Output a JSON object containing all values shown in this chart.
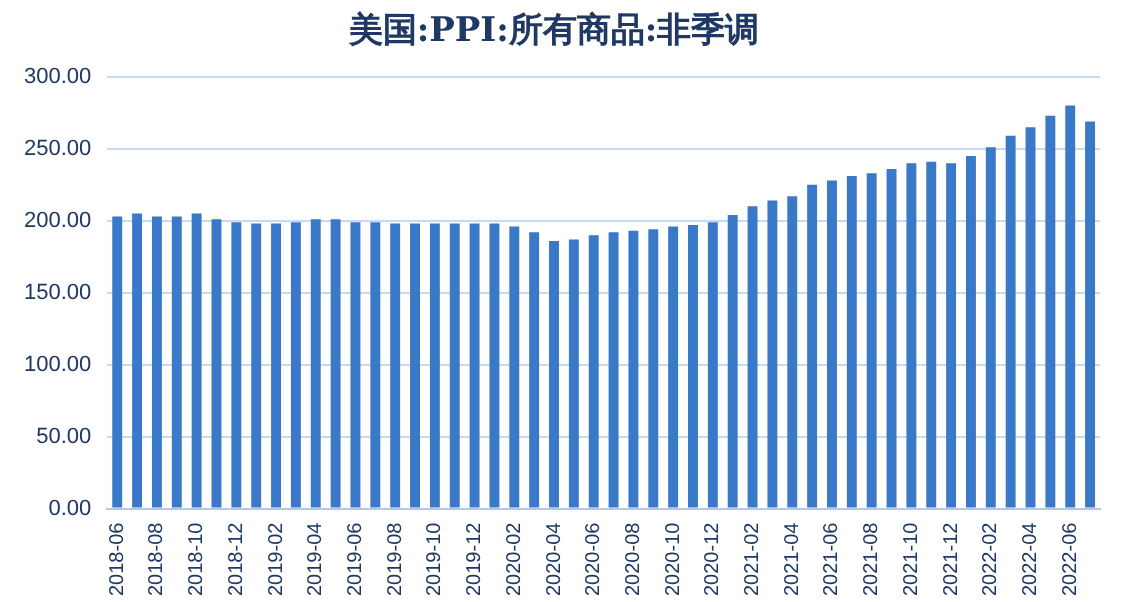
{
  "chart_data": {
    "type": "bar",
    "title": "美国:PPI:所有商品:非季调",
    "categories": [
      "2018-06",
      null,
      "2018-08",
      null,
      "2018-10",
      null,
      "2018-12",
      null,
      "2019-02",
      null,
      "2019-04",
      null,
      "2019-06",
      null,
      "2019-08",
      null,
      "2019-10",
      null,
      "2019-12",
      null,
      "2020-02",
      null,
      "2020-04",
      null,
      "2020-06",
      null,
      "2020-08",
      null,
      "2020-10",
      null,
      "2020-12",
      null,
      "2021-02",
      null,
      "2021-04",
      null,
      "2021-06",
      null,
      "2021-08",
      null,
      "2021-10",
      null,
      "2021-12",
      null,
      "2022-02",
      null,
      "2022-04",
      null,
      "2022-06",
      null
    ],
    "values": [
      203,
      205,
      203,
      203,
      205,
      201,
      199,
      198,
      198,
      199,
      201,
      201,
      199,
      199,
      198,
      198,
      198,
      198,
      198,
      198,
      196,
      192,
      186,
      187,
      190,
      192,
      193,
      194,
      196,
      197,
      199,
      204,
      210,
      214,
      217,
      225,
      228,
      231,
      233,
      236,
      240,
      241,
      240,
      245,
      251,
      259,
      265,
      273,
      280,
      269
    ],
    "color": "#3a78c8",
    "ylim": [
      0,
      300
    ],
    "yticks": [
      {
        "value": 0,
        "label": "0.00"
      },
      {
        "value": 50,
        "label": "50.00"
      },
      {
        "value": 100,
        "label": "100.00"
      },
      {
        "value": 150,
        "label": "150.00"
      },
      {
        "value": 200,
        "label": "200.00"
      },
      {
        "value": 250,
        "label": "250.00"
      },
      {
        "value": 300,
        "label": "300.00"
      }
    ],
    "grid": "y"
  }
}
